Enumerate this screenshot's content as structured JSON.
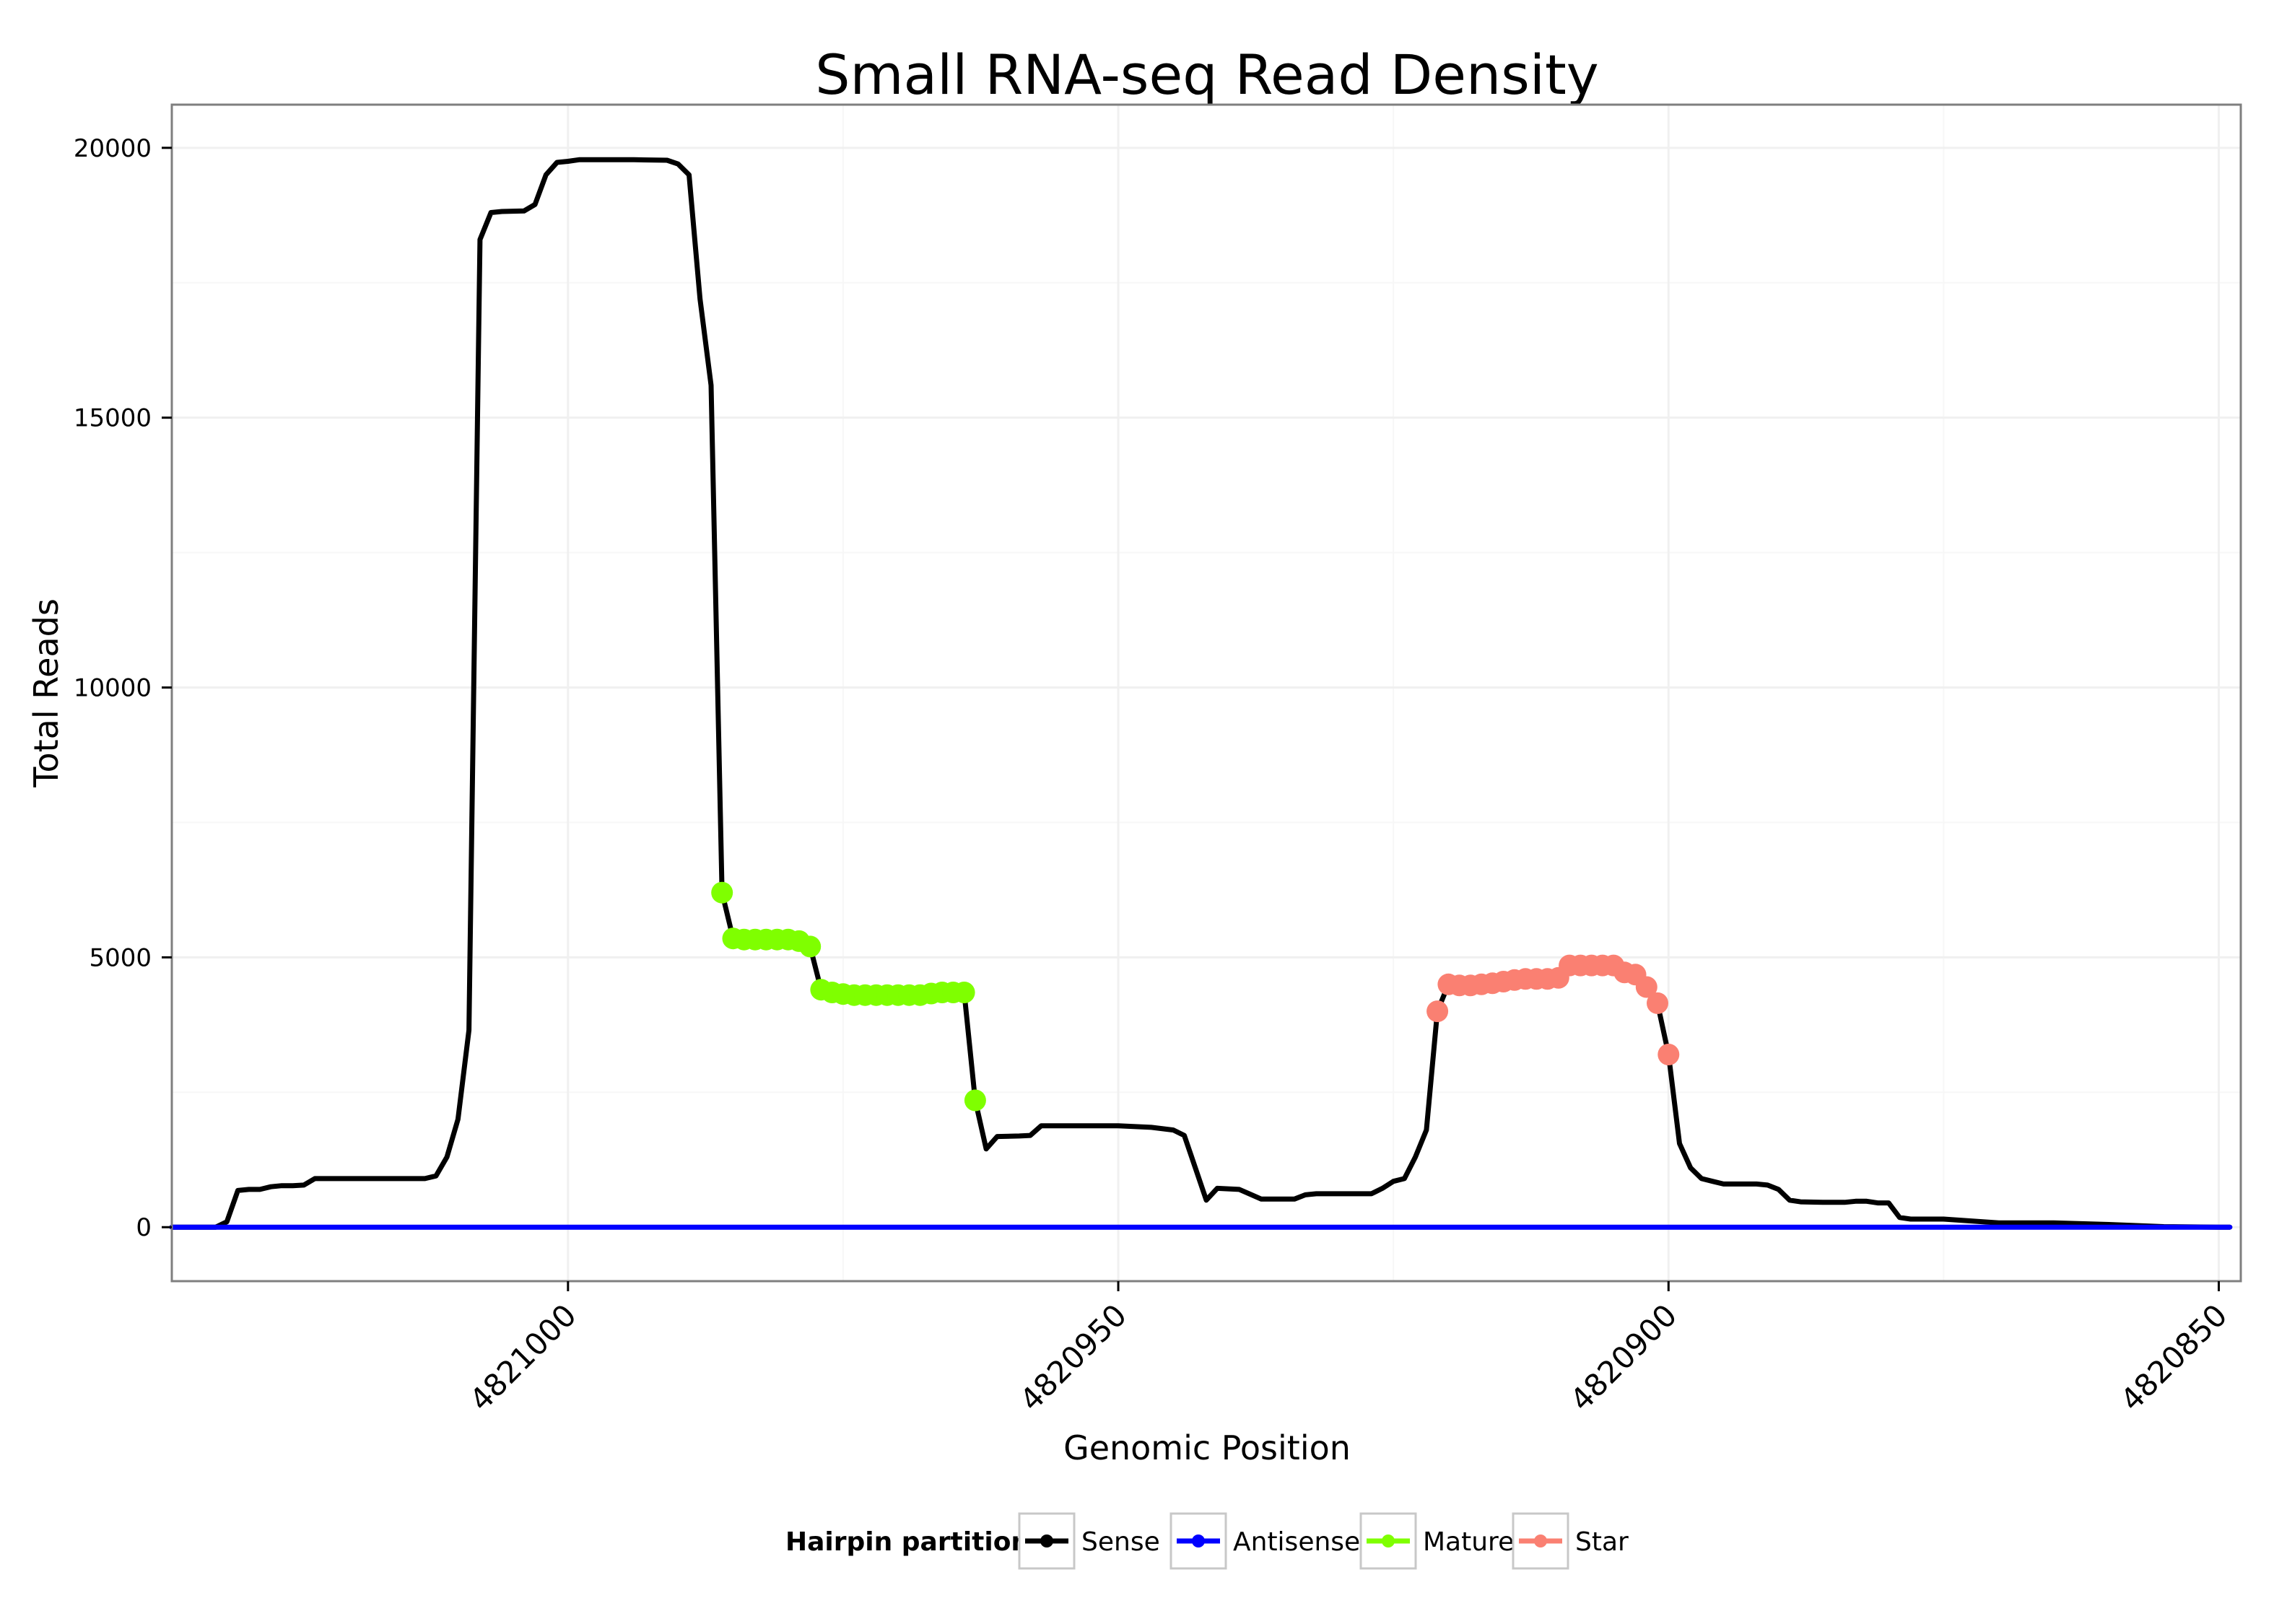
{
  "chart_data": {
    "type": "line",
    "title": "Small RNA-seq Read Density",
    "xlabel": "Genomic Position",
    "ylabel": "Total Reads",
    "x_reversed": true,
    "xlim": [
      4821036,
      4820848
    ],
    "ylim": [
      -1000,
      20800
    ],
    "x_ticks": [
      4821000,
      4820950,
      4820900,
      4820850
    ],
    "x_tick_labels": [
      "4821000",
      "4820950",
      "4820900",
      "4820850"
    ],
    "y_ticks": [
      0,
      5000,
      10000,
      15000,
      20000
    ],
    "y_tick_labels": [
      "0",
      "5000",
      "10000",
      "15000",
      "20000"
    ],
    "grid": true,
    "legend": {
      "title": "Hairpin partition",
      "position": "bottom",
      "entries": [
        {
          "name": "Sense",
          "color": "#000000"
        },
        {
          "name": "Antisense",
          "color": "#0000ff"
        },
        {
          "name": "Mature",
          "color": "#7fff00"
        },
        {
          "name": "Star",
          "color": "#fa8072"
        }
      ]
    },
    "series": [
      {
        "name": "Sense",
        "color": "#000000",
        "points": [
          [
            4821036,
            0
          ],
          [
            4821032,
            0
          ],
          [
            4821031,
            100
          ],
          [
            4821030,
            680
          ],
          [
            4821029,
            700
          ],
          [
            4821028,
            700
          ],
          [
            4821027,
            750
          ],
          [
            4821026,
            770
          ],
          [
            4821025,
            770
          ],
          [
            4821024,
            780
          ],
          [
            4821023,
            900
          ],
          [
            4821022,
            900
          ],
          [
            4821015,
            900
          ],
          [
            4821013,
            900
          ],
          [
            4821012,
            950
          ],
          [
            4821011,
            1300
          ],
          [
            4821010,
            2000
          ],
          [
            4821009,
            3650
          ],
          [
            4821008,
            18300
          ],
          [
            4821007,
            18800
          ],
          [
            4821006,
            18820
          ],
          [
            4821004,
            18830
          ],
          [
            4821003,
            18950
          ],
          [
            4821002,
            19500
          ],
          [
            4821001,
            19730
          ],
          [
            4821000,
            19750
          ],
          [
            4820999,
            19780
          ],
          [
            4820994,
            19780
          ],
          [
            4820991,
            19770
          ],
          [
            4820990,
            19700
          ],
          [
            4820989,
            19500
          ],
          [
            4820988,
            17200
          ],
          [
            4820987,
            15600
          ],
          [
            4820986,
            6200
          ],
          [
            4820985,
            5350
          ],
          [
            4820984,
            5330
          ],
          [
            4820982,
            5330
          ],
          [
            4820980,
            5330
          ],
          [
            4820979,
            5300
          ],
          [
            4820978,
            5200
          ],
          [
            4820977,
            4400
          ],
          [
            4820976,
            4350
          ],
          [
            4820974,
            4300
          ],
          [
            4820968,
            4300
          ],
          [
            4820966,
            4350
          ],
          [
            4820965,
            4350
          ],
          [
            4820964,
            4350
          ],
          [
            4820963,
            2350
          ],
          [
            4820962,
            1450
          ],
          [
            4820961,
            1680
          ],
          [
            4820959,
            1690
          ],
          [
            4820958,
            1700
          ],
          [
            4820957,
            1880
          ],
          [
            4820950,
            1880
          ],
          [
            4820947,
            1850
          ],
          [
            4820945,
            1800
          ],
          [
            4820944,
            1700
          ],
          [
            4820943,
            1100
          ],
          [
            4820942,
            500
          ],
          [
            4820941,
            720
          ],
          [
            4820939,
            700
          ],
          [
            4820937,
            520
          ],
          [
            4820934,
            520
          ],
          [
            4820933,
            600
          ],
          [
            4820932,
            620
          ],
          [
            4820927,
            620
          ],
          [
            4820926,
            720
          ],
          [
            4820925,
            850
          ],
          [
            4820924,
            900
          ],
          [
            4820923,
            1300
          ],
          [
            4820922,
            1800
          ],
          [
            4820921,
            4000
          ],
          [
            4820920,
            4500
          ],
          [
            4820917,
            4500
          ],
          [
            4820915,
            4550
          ],
          [
            4820913,
            4600
          ],
          [
            4820911,
            4600
          ],
          [
            4820910,
            4620
          ],
          [
            4820909,
            4850
          ],
          [
            4820906,
            4850
          ],
          [
            4820905,
            4850
          ],
          [
            4820904,
            4720
          ],
          [
            4820903,
            4680
          ],
          [
            4820902,
            4450
          ],
          [
            4820901,
            4150
          ],
          [
            4820900,
            3200
          ],
          [
            4820899,
            1550
          ],
          [
            4820898,
            1100
          ],
          [
            4820897,
            900
          ],
          [
            4820896,
            850
          ],
          [
            4820895,
            800
          ],
          [
            4820894,
            800
          ],
          [
            4820892,
            800
          ],
          [
            4820891,
            780
          ],
          [
            4820890,
            700
          ],
          [
            4820889,
            500
          ],
          [
            4820888,
            470
          ],
          [
            4820886,
            460
          ],
          [
            4820884,
            460
          ],
          [
            4820883,
            480
          ],
          [
            4820882,
            480
          ],
          [
            4820881,
            450
          ],
          [
            4820880,
            450
          ],
          [
            4820879,
            180
          ],
          [
            4820878,
            150
          ],
          [
            4820875,
            150
          ],
          [
            4820870,
            80
          ],
          [
            4820865,
            80
          ],
          [
            4820860,
            50
          ],
          [
            4820855,
            10
          ],
          [
            4820850,
            0
          ],
          [
            4820849,
            0
          ]
        ]
      },
      {
        "name": "Antisense",
        "color": "#0000ff",
        "points": [
          [
            4821036,
            0
          ],
          [
            4820849,
            0
          ]
        ]
      },
      {
        "name": "Mature",
        "color": "#7fff00",
        "points": [
          [
            4820986,
            6200
          ],
          [
            4820985,
            5350
          ],
          [
            4820984,
            5330
          ],
          [
            4820983,
            5330
          ],
          [
            4820982,
            5330
          ],
          [
            4820981,
            5330
          ],
          [
            4820980,
            5330
          ],
          [
            4820979,
            5300
          ],
          [
            4820978,
            5200
          ],
          [
            4820977,
            4400
          ],
          [
            4820976,
            4350
          ],
          [
            4820975,
            4320
          ],
          [
            4820974,
            4300
          ],
          [
            4820973,
            4300
          ],
          [
            4820972,
            4300
          ],
          [
            4820971,
            4300
          ],
          [
            4820970,
            4300
          ],
          [
            4820969,
            4300
          ],
          [
            4820968,
            4300
          ],
          [
            4820967,
            4330
          ],
          [
            4820966,
            4350
          ],
          [
            4820965,
            4350
          ],
          [
            4820964,
            4350
          ],
          [
            4820963,
            2350
          ]
        ]
      },
      {
        "name": "Star",
        "color": "#fa8072",
        "points": [
          [
            4820921,
            4000
          ],
          [
            4820920,
            4500
          ],
          [
            4820919,
            4480
          ],
          [
            4820918,
            4480
          ],
          [
            4820917,
            4500
          ],
          [
            4820916,
            4520
          ],
          [
            4820915,
            4550
          ],
          [
            4820914,
            4580
          ],
          [
            4820913,
            4600
          ],
          [
            4820912,
            4600
          ],
          [
            4820911,
            4600
          ],
          [
            4820910,
            4620
          ],
          [
            4820909,
            4850
          ],
          [
            4820908,
            4850
          ],
          [
            4820907,
            4850
          ],
          [
            4820906,
            4850
          ],
          [
            4820905,
            4850
          ],
          [
            4820904,
            4720
          ],
          [
            4820903,
            4680
          ],
          [
            4820902,
            4450
          ],
          [
            4820901,
            4150
          ],
          [
            4820900,
            3200
          ]
        ]
      }
    ]
  }
}
